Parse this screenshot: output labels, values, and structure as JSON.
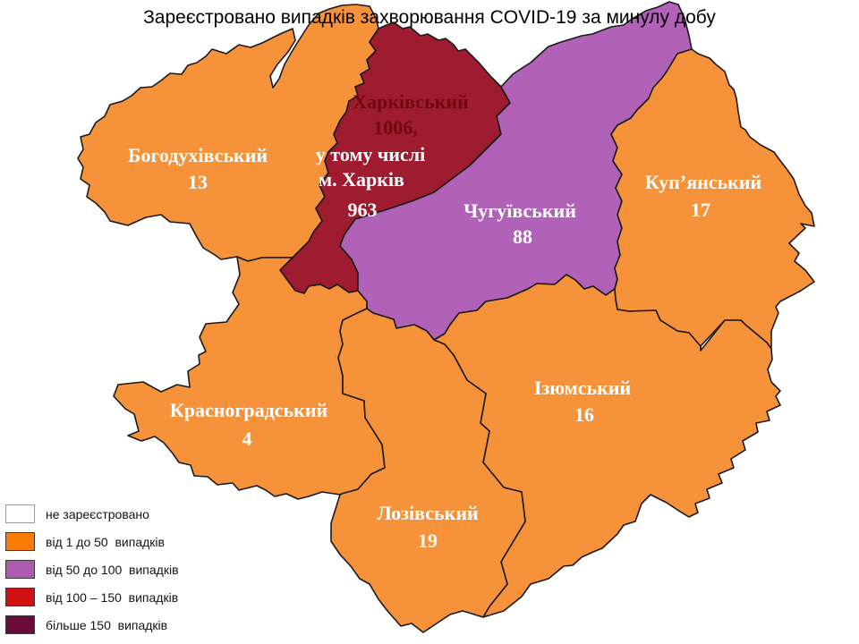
{
  "title": "Зареєстровано випадків захворювання COVID-19 за минулу добу",
  "map": {
    "background": "#FFFFFF",
    "border_color": "#1A1A1A",
    "label_color": "#FFFFFF",
    "regions": [
      {
        "id": "bohodukhivskyi",
        "name": "Богодухівський",
        "cases": "13",
        "fill": "#F6923A",
        "label_lines": [
          "Богодухівський",
          "13"
        ]
      },
      {
        "id": "kharkivskyi",
        "name": "Харківський",
        "cases": "1006",
        "note": "у тому числі м. Харків 963",
        "city_cases": "963",
        "fill": "#9E1B30",
        "label_lines": [
          "Харківський",
          "1006,",
          "у тому числі",
          "м. Харків",
          "963"
        ],
        "label_colors": [
          "#72080F",
          "#72080F",
          "#FFFFFF",
          "#FFFFFF",
          "#FFFFFF"
        ]
      },
      {
        "id": "chuhuivskyi",
        "name": "Чугуївський",
        "cases": "88",
        "fill": "#B162B8",
        "label_lines": [
          "Чугуївський",
          "88"
        ]
      },
      {
        "id": "kupianskyi",
        "name": "Куп’янський",
        "cases": "17",
        "fill": "#F6923A",
        "label_lines": [
          "Куп’янський",
          "17"
        ]
      },
      {
        "id": "iziumskyi",
        "name": "Ізюмський",
        "cases": "16",
        "fill": "#F6923A",
        "label_lines": [
          "Ізюмський",
          "16"
        ]
      },
      {
        "id": "krasnohradskyi",
        "name": "Красноградський",
        "cases": "4",
        "fill": "#F6923A",
        "label_lines": [
          "Красноградський",
          "4"
        ]
      },
      {
        "id": "lozivskyi",
        "name": "Лозівський",
        "cases": "19",
        "fill": "#F6923A",
        "label_lines": [
          "Лозівський",
          "19"
        ]
      }
    ]
  },
  "legend": {
    "items": [
      {
        "label": "не зареєстровано",
        "color": "#FFFFFF"
      },
      {
        "label": "від 1 до 50  випадків",
        "color": "#F97C06"
      },
      {
        "label": "від 50 до 100  випадків",
        "color": "#AB5CAE"
      },
      {
        "label": "від 100 – 150  випадків",
        "color": "#D01111"
      },
      {
        "label": "більше 150  випадків",
        "color": "#6B0B3C"
      }
    ]
  }
}
